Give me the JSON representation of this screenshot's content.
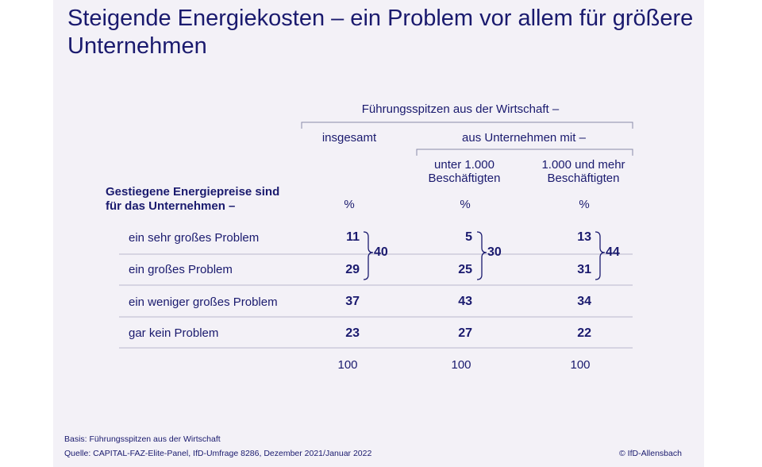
{
  "title": "Steigende Energiekosten – ein Problem vor allem für größere Unternehmen",
  "chart_data": {
    "type": "table",
    "header": {
      "group": "Führungsspitzen aus der Wirtschaft –",
      "subgroup": "aus Unternehmen mit –",
      "columns": [
        "insgesamt",
        "unter 1.000 Beschäftigten",
        "1.000 und mehr Beschäftigten"
      ],
      "unit": "%"
    },
    "row_header": "Gestiegene Energiepreise sind für das Unternehmen –",
    "rows": [
      {
        "label": "ein sehr großes Problem",
        "values": [
          11,
          5,
          13
        ]
      },
      {
        "label": "ein großes Problem",
        "values": [
          29,
          25,
          31
        ]
      },
      {
        "label": "ein weniger großes Problem",
        "values": [
          37,
          43,
          34
        ]
      },
      {
        "label": "gar kein Problem",
        "values": [
          23,
          27,
          22
        ]
      }
    ],
    "bracket_sums": [
      40,
      30,
      44
    ],
    "totals": [
      100,
      100,
      100
    ]
  },
  "footer": {
    "basis": "Basis: Führungsspitzen aus der Wirtschaft",
    "source": "Quelle: CAPITAL-FAZ-Elite-Panel, IfD-Umfrage 8286, Dezember 2021/Januar 2022",
    "copyright": "© IfD-Allensbach"
  }
}
